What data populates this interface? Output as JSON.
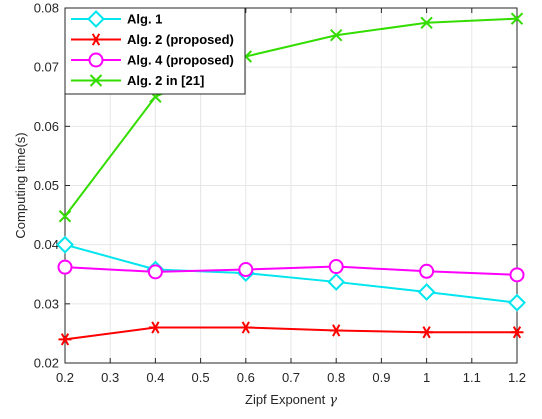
{
  "chart_data": {
    "type": "line",
    "title": "",
    "xlabel": "Zipf Exponent",
    "xlabel_symbol": "γ",
    "ylabel": "Computing time(s)",
    "x": [
      0.2,
      0.4,
      0.6,
      0.8,
      1.0,
      1.2
    ],
    "xlim": [
      0.2,
      1.2
    ],
    "ylim": [
      0.02,
      0.08
    ],
    "x_ticks": [
      "0.2",
      "0.3",
      "0.4",
      "0.5",
      "0.6",
      "0.7",
      "0.8",
      "0.9",
      "1",
      "1.1",
      "1.2"
    ],
    "x_tick_values": [
      0.2,
      0.3,
      0.4,
      0.5,
      0.6,
      0.7,
      0.8,
      0.9,
      1.0,
      1.1,
      1.2
    ],
    "y_ticks": [
      "0.02",
      "0.03",
      "0.04",
      "0.05",
      "0.06",
      "0.07",
      "0.08"
    ],
    "y_tick_values": [
      0.02,
      0.03,
      0.04,
      0.05,
      0.06,
      0.07,
      0.08
    ],
    "grid": true,
    "legend_position": "top-left",
    "series": [
      {
        "name": "Alg. 1",
        "color": "#00e5ee",
        "marker": "diamond",
        "values": [
          0.04,
          0.0358,
          0.0352,
          0.0337,
          0.032,
          0.0302
        ]
      },
      {
        "name": "Alg. 2 (proposed)",
        "color": "#ff0000",
        "marker": "asterisk",
        "values": [
          0.024,
          0.026,
          0.026,
          0.0255,
          0.0252,
          0.0252
        ]
      },
      {
        "name": "Alg. 4 (proposed)",
        "color": "#ff00ff",
        "marker": "circle",
        "values": [
          0.0362,
          0.0354,
          0.0358,
          0.0363,
          0.0355,
          0.0349
        ]
      },
      {
        "name": "Alg. 2 in [21]",
        "color": "#33dd00",
        "marker": "x",
        "values": [
          0.0448,
          0.065,
          0.0718,
          0.0754,
          0.0775,
          0.0782
        ]
      }
    ]
  }
}
